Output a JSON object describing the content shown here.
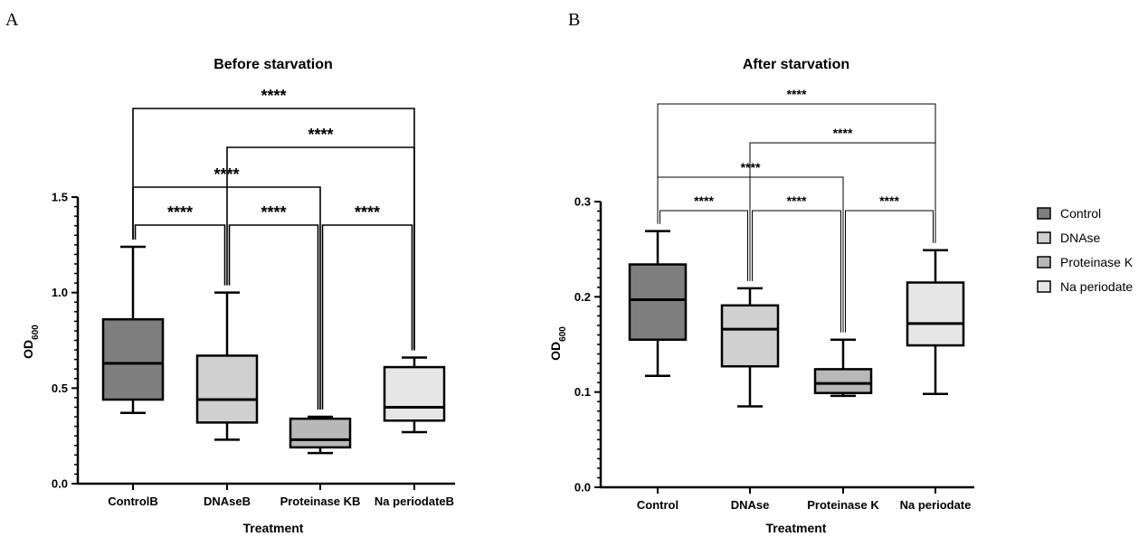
{
  "chart_data": [
    {
      "type": "box",
      "panel_label": "A",
      "title": "Before starvation",
      "xlabel": "Treatment",
      "ylabel_main": "OD",
      "ylabel_sub": "600",
      "ylim": [
        0,
        1.5
      ],
      "yticks": [
        "0.0",
        "0.5",
        "1.0",
        "1.5"
      ],
      "categories": [
        "ControlB",
        "DNAseB",
        "Proteinase KB",
        "Na periodateB"
      ],
      "boxes": [
        {
          "min": 0.37,
          "q1": 0.44,
          "median": 0.63,
          "q3": 0.86,
          "max": 1.24
        },
        {
          "min": 0.23,
          "q1": 0.32,
          "median": 0.44,
          "q3": 0.67,
          "max": 1.0
        },
        {
          "min": 0.16,
          "q1": 0.19,
          "median": 0.23,
          "q3": 0.34,
          "max": 0.35
        },
        {
          "min": 0.27,
          "q1": 0.33,
          "median": 0.4,
          "q3": 0.61,
          "max": 0.66
        }
      ],
      "colors": [
        "#7f7f7f",
        "#d0d0d0",
        "#b8b8b8",
        "#e6e6e6"
      ],
      "significance": [
        {
          "from": 0,
          "to": 1,
          "label": "****"
        },
        {
          "from": 1,
          "to": 2,
          "label": "****"
        },
        {
          "from": 2,
          "to": 3,
          "label": "****"
        },
        {
          "from": 0,
          "to": 2,
          "label": "****"
        },
        {
          "from": 1,
          "to": 3,
          "label": "****"
        },
        {
          "from": 0,
          "to": 3,
          "label": "****"
        }
      ]
    },
    {
      "type": "box",
      "panel_label": "B",
      "title": "After starvation",
      "xlabel": "Treatment",
      "ylabel_main": "OD",
      "ylabel_sub": "600",
      "ylim": [
        0,
        0.3
      ],
      "yticks": [
        "0.0",
        "0.1",
        "0.2",
        "0.3"
      ],
      "categories": [
        "Control",
        "DNAse",
        "Proteinase K",
        "Na periodate"
      ],
      "boxes": [
        {
          "min": 0.117,
          "q1": 0.155,
          "median": 0.197,
          "q3": 0.234,
          "max": 0.269
        },
        {
          "min": 0.085,
          "q1": 0.127,
          "median": 0.166,
          "q3": 0.191,
          "max": 0.209
        },
        {
          "min": 0.096,
          "q1": 0.099,
          "median": 0.109,
          "q3": 0.124,
          "max": 0.155
        },
        {
          "min": 0.098,
          "q1": 0.149,
          "median": 0.172,
          "q3": 0.215,
          "max": 0.249
        }
      ],
      "colors": [
        "#7f7f7f",
        "#d0d0d0",
        "#b8b8b8",
        "#e6e6e6"
      ],
      "significance": [
        {
          "from": 0,
          "to": 1,
          "label": "****"
        },
        {
          "from": 1,
          "to": 2,
          "label": "****"
        },
        {
          "from": 2,
          "to": 3,
          "label": "****"
        },
        {
          "from": 0,
          "to": 2,
          "label": "****"
        },
        {
          "from": 1,
          "to": 3,
          "label": "****"
        },
        {
          "from": 0,
          "to": 3,
          "label": "****"
        }
      ],
      "legend": {
        "position": "right",
        "entries": [
          "Control",
          "DNAse",
          "Proteinase K",
          "Na periodate"
        ]
      }
    }
  ]
}
